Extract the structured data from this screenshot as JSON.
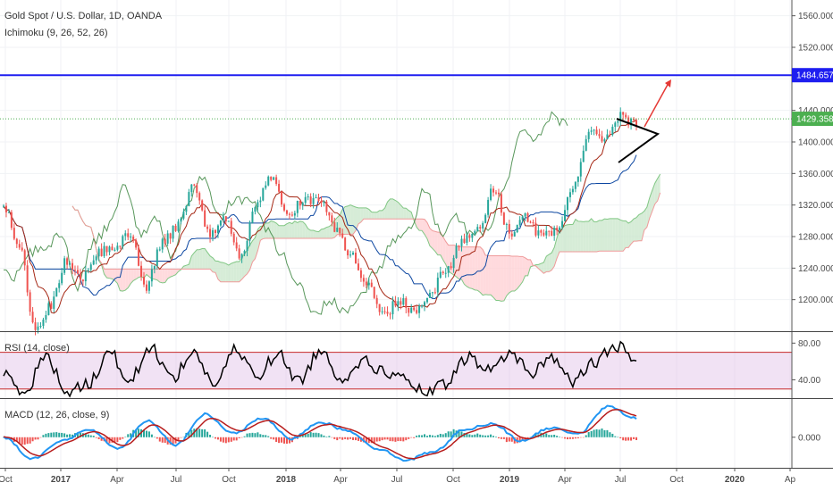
{
  "header": {
    "title": "Gold Spot / U.S. Dollar, 1D, OANDA",
    "indicator": "Ichimoku (9, 26, 52, 26)"
  },
  "panes": {
    "rsi_label": "RSI (14, close)",
    "macd_label": "MACD (12, 26, close, 9)"
  },
  "colors": {
    "candle_up": "#26a69a",
    "candle_down": "#ef5350",
    "tenkan": "#a52714",
    "kijun": "#0d47a1",
    "chikou": "#2e7d32",
    "cloud_bull": "#c8e6c9",
    "cloud_bear": "#ffcdd2",
    "rsi_line": "#000000",
    "rsi_band": "#e1bee7",
    "rsi_bounds": "#c62828",
    "resistance": "#1e1ef0",
    "last_price": "#4caf50",
    "arrow": "#e53935",
    "triangle": "#000000",
    "macd_line": "#2196f3",
    "signal_line": "#b71c1c"
  },
  "chart_data": {
    "type": "line",
    "title": "Gold Spot / U.S. Dollar, 1D, OANDA",
    "x_ticks": [
      "Oct",
      "2017",
      "Apr",
      "Jul",
      "Oct",
      "2018",
      "Apr",
      "Jul",
      "Oct",
      "2019",
      "Apr",
      "Jul",
      "Oct",
      "2020",
      "Ap"
    ],
    "price_axis": {
      "ticks": [
        "1560.000",
        "1520.000",
        "1480.000",
        "1440.000",
        "1400.000",
        "1360.000",
        "1320.000",
        "1280.000",
        "1240.000",
        "1200.000"
      ],
      "ylim": [
        1160,
        1580
      ]
    },
    "price_waypoints": [
      1320,
      1265,
      1160,
      1195,
      1250,
      1230,
      1260,
      1265,
      1285,
      1215,
      1270,
      1295,
      1345,
      1285,
      1300,
      1255,
      1325,
      1355,
      1305,
      1330,
      1325,
      1290,
      1255,
      1220,
      1180,
      1200,
      1185,
      1210,
      1240,
      1275,
      1290,
      1340,
      1285,
      1305,
      1280,
      1285,
      1345,
      1410,
      1405,
      1435,
      1420
    ],
    "resistance_level": {
      "value": 1484.657,
      "label": "1484.657"
    },
    "last_price": {
      "value": 1429.358,
      "label": "1429.358"
    },
    "rsi": {
      "label": "RSI (14, close)",
      "ticks": [
        "80.00",
        "40.00"
      ],
      "upper_band": 70,
      "lower_band": 30,
      "ylim": [
        20,
        92
      ],
      "waypoints": [
        45,
        28,
        65,
        28,
        35,
        70,
        40,
        75,
        42,
        70,
        35,
        72,
        45,
        68,
        38,
        72,
        42,
        60,
        50,
        40,
        25,
        35,
        65,
        50,
        70,
        48,
        65,
        38,
        58,
        78,
        60
      ]
    },
    "macd": {
      "label": "MACD (12, 26, close, 9)",
      "ticks": [
        "0.000"
      ],
      "ylim": [
        -40,
        50
      ],
      "waypoints": [
        0,
        -28,
        -5,
        10,
        -15,
        22,
        -10,
        30,
        5,
        25,
        -2,
        20,
        8,
        -15,
        -30,
        -18,
        10,
        18,
        -5,
        12,
        5,
        40,
        25
      ]
    }
  }
}
